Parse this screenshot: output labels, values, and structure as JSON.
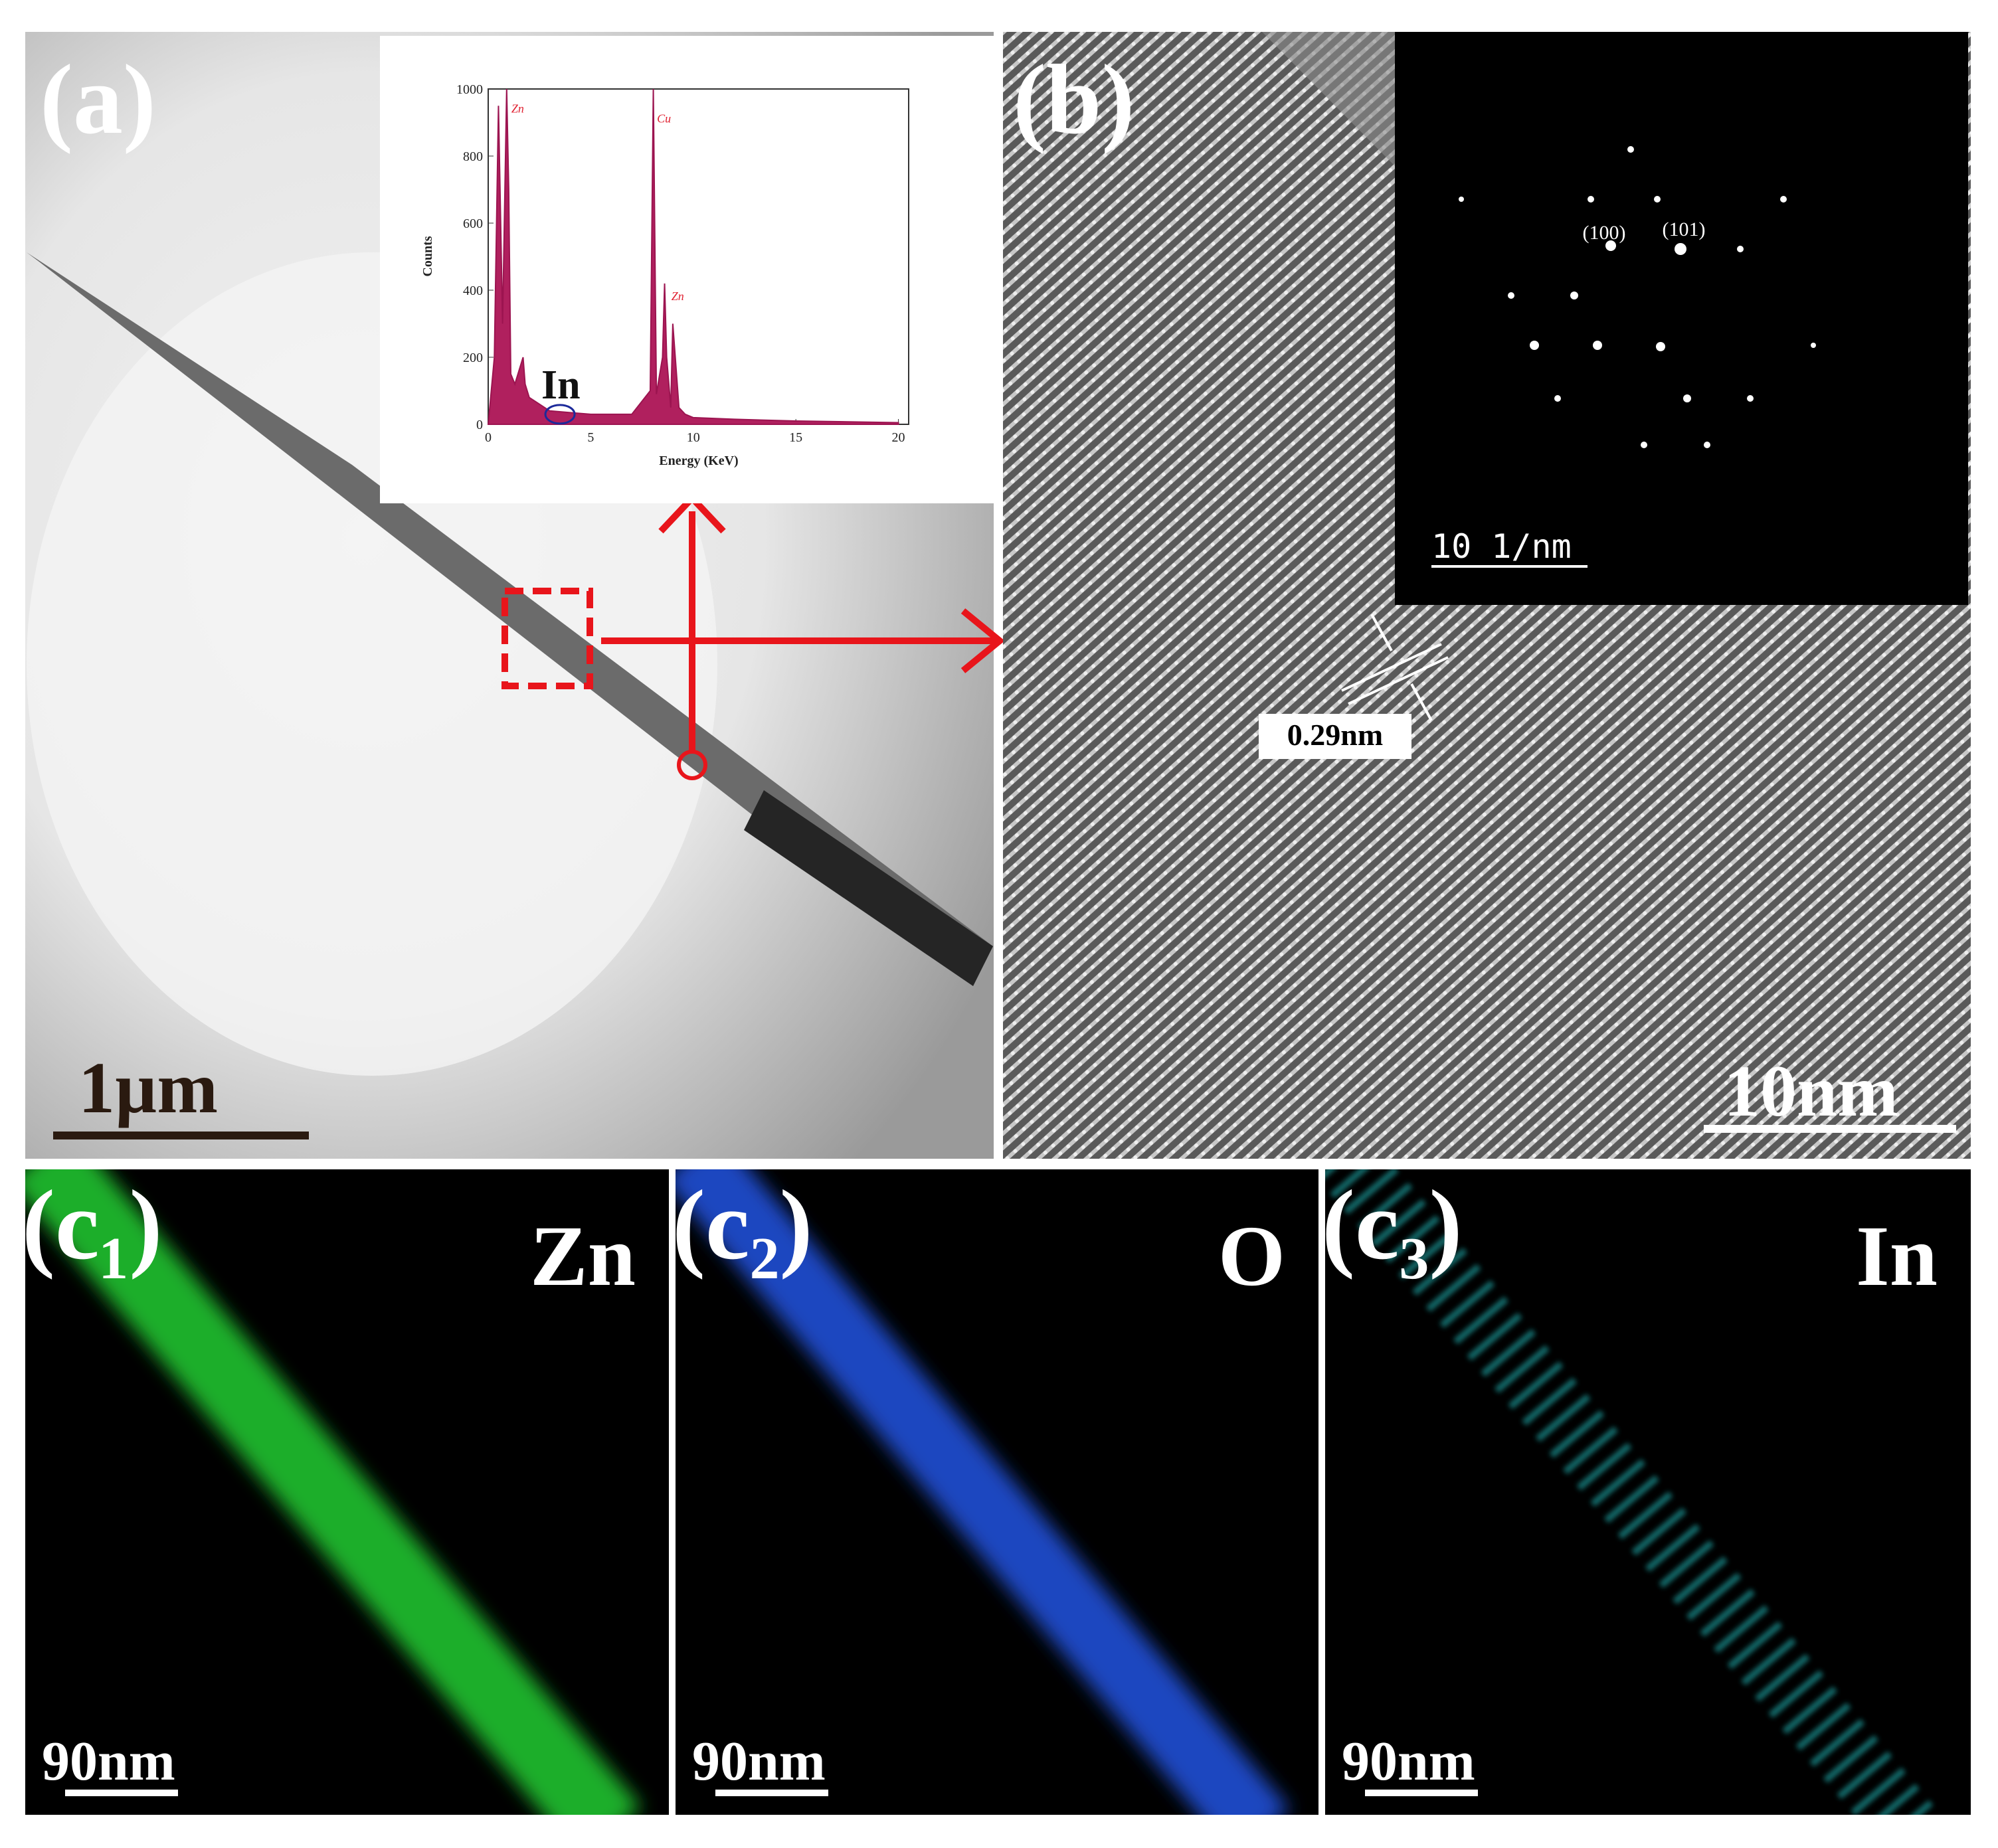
{
  "panels": {
    "a": {
      "label": "(a)",
      "scale_bar": "1µm",
      "eds": {
        "ylabel": "Counts",
        "xlabel": "Energy (KeV)",
        "xlim": [
          0,
          20.5
        ],
        "ylim": [
          0,
          1000
        ],
        "xticks": [
          0,
          5,
          10,
          15,
          20
        ],
        "yticks": [
          0,
          200,
          400,
          600,
          800,
          1000
        ],
        "spectrum": {
          "x": [
            0,
            0.3,
            0.5,
            0.7,
            0.9,
            1.0,
            1.1,
            1.3,
            1.7,
            1.8,
            2.0,
            3,
            4,
            5,
            7,
            7.9,
            8.05,
            8.2,
            8.5,
            8.6,
            8.7,
            8.9,
            9.0,
            9.3,
            9.6,
            10,
            12,
            15,
            20
          ],
          "y": [
            0,
            200,
            950,
            300,
            1000,
            700,
            150,
            120,
            200,
            120,
            80,
            40,
            35,
            30,
            30,
            100,
            1000,
            90,
            200,
            420,
            200,
            50,
            300,
            50,
            30,
            20,
            15,
            10,
            5
          ]
        },
        "peak_labels": [
          "Zn",
          "Cu",
          "Zn"
        ],
        "annotation": "In"
      }
    },
    "b": {
      "label": "(b)",
      "scale_bar": "10nm",
      "lattice_spacing": "0.29nm",
      "saed": {
        "spots": [
          "(100)",
          "(101)"
        ],
        "scale_bar": "10 1/nm"
      }
    },
    "c1": {
      "label": "(c₁)",
      "element": "Zn",
      "scale_bar": "90nm"
    },
    "c2": {
      "label": "(c₂)",
      "element": "O",
      "scale_bar": "90nm"
    },
    "c3": {
      "label": "(c₃)",
      "element": "In",
      "scale_bar": "90nm"
    }
  }
}
